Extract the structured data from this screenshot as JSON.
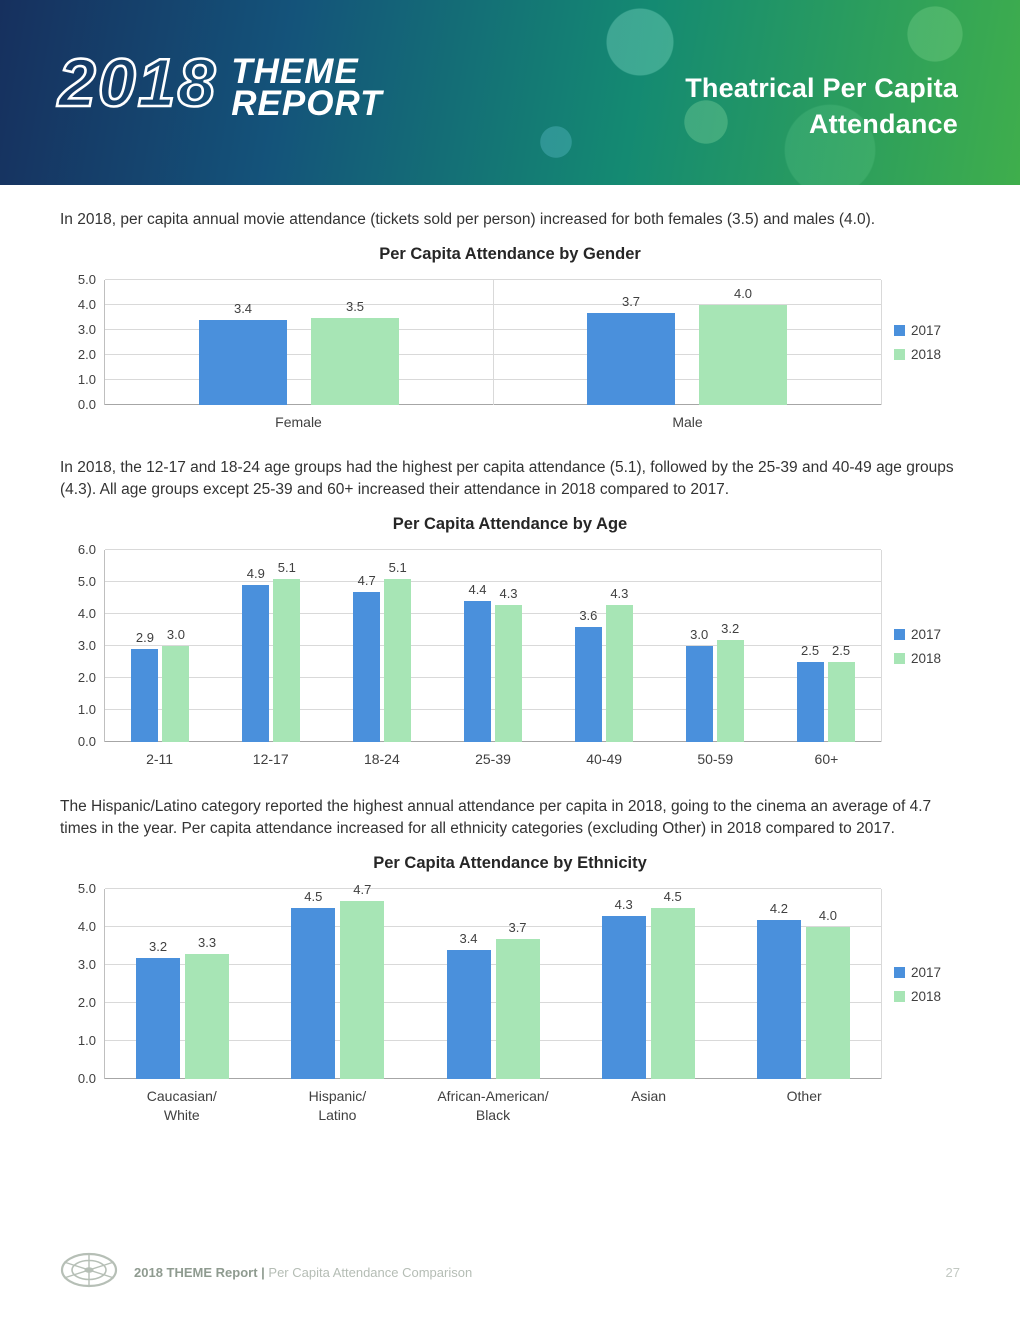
{
  "header": {
    "year": "2018",
    "brand_line1": "THEME",
    "brand_line2": "REPORT",
    "title_line1": "Theatrical Per Capita",
    "title_line2": "Attendance"
  },
  "paragraphs": {
    "gender": "In 2018, per capita annual movie attendance (tickets sold per person) increased for both females (3.5) and males (4.0).",
    "age": "In 2018, the 12-17 and 18-24 age groups had the highest per capita attendance (5.1), followed by the 25-39 and 40-49 age groups (4.3). All age groups except 25-39 and 60+ increased their attendance in 2018 compared to 2017.",
    "ethnicity": "The Hispanic/Latino category reported the highest annual attendance per capita in 2018, going to the cinema an average of 4.7 times in the year. Per capita attendance increased for all ethnicity categories (excluding Other) in 2018 compared to 2017."
  },
  "chart_data": [
    {
      "id": "gender",
      "type": "bar",
      "title": "Per Capita Attendance by Gender",
      "categories": [
        "Female",
        "Male"
      ],
      "series": [
        {
          "name": "2017",
          "color": "#4a90dc",
          "values": [
            3.4,
            3.7
          ]
        },
        {
          "name": "2018",
          "color": "#a7e5b5",
          "values": [
            3.5,
            4.0
          ]
        }
      ],
      "ylim": [
        0,
        5
      ],
      "ytick_step": 1,
      "grid": true,
      "legend_position": "right"
    },
    {
      "id": "age",
      "type": "bar",
      "title": "Per Capita Attendance by Age",
      "categories": [
        "2-11",
        "12-17",
        "18-24",
        "25-39",
        "40-49",
        "50-59",
        "60+"
      ],
      "series": [
        {
          "name": "2017",
          "color": "#4a90dc",
          "values": [
            2.9,
            4.9,
            4.7,
            4.4,
            3.6,
            3.0,
            2.5
          ]
        },
        {
          "name": "2018",
          "color": "#a7e5b5",
          "values": [
            3.0,
            5.1,
            5.1,
            4.3,
            4.3,
            3.2,
            2.5
          ]
        }
      ],
      "ylim": [
        0,
        6
      ],
      "ytick_step": 1,
      "grid": true,
      "legend_position": "right"
    },
    {
      "id": "ethnicity",
      "type": "bar",
      "title": "Per Capita Attendance by Ethnicity",
      "categories": [
        "Caucasian/\nWhite",
        "Hispanic/\nLatino",
        "African-American/\nBlack",
        "Asian",
        "Other"
      ],
      "series": [
        {
          "name": "2017",
          "color": "#4a90dc",
          "values": [
            3.2,
            4.5,
            3.4,
            4.3,
            4.2
          ]
        },
        {
          "name": "2018",
          "color": "#a7e5b5",
          "values": [
            3.3,
            4.7,
            3.7,
            4.5,
            4.0
          ]
        }
      ],
      "ylim": [
        0,
        5
      ],
      "ytick_step": 1,
      "grid": true,
      "legend_position": "right"
    }
  ],
  "footer": {
    "report_label": "2018 THEME Report |",
    "section_label": "Per Capita Attendance Comparison",
    "page_number": "27"
  }
}
